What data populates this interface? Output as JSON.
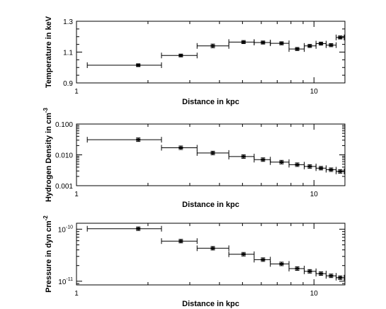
{
  "chart_data": [
    {
      "type": "scatter",
      "xlabel": "Distance in kpc",
      "ylabel": "Temperature in keV",
      "xscale": "log",
      "yscale": "linear",
      "xlim": [
        1,
        13.5
      ],
      "ylim": [
        0.9,
        1.3
      ],
      "xticks": [
        {
          "v": 1,
          "label": "1"
        },
        {
          "v": 10,
          "label": "10"
        }
      ],
      "yticks": [
        {
          "v": 0.9,
          "label": "0.9"
        },
        {
          "v": 1.1,
          "label": "1.1"
        },
        {
          "v": 1.3,
          "label": "1.3"
        }
      ],
      "points": [
        {
          "x": 1.82,
          "xlo": 1.11,
          "xhi": 2.28,
          "y": 1.015,
          "yerr": 0.006
        },
        {
          "x": 2.75,
          "xlo": 2.28,
          "xhi": 3.22,
          "y": 1.078,
          "yerr": 0.006
        },
        {
          "x": 3.75,
          "xlo": 3.22,
          "xhi": 4.38,
          "y": 1.14,
          "yerr": 0.012
        },
        {
          "x": 5.05,
          "xlo": 4.38,
          "xhi": 5.6,
          "y": 1.165,
          "yerr": 0.01
        },
        {
          "x": 6.1,
          "xlo": 5.6,
          "xhi": 6.55,
          "y": 1.162,
          "yerr": 0.01
        },
        {
          "x": 7.3,
          "xlo": 6.55,
          "xhi": 7.85,
          "y": 1.157,
          "yerr": 0.01
        },
        {
          "x": 8.5,
          "xlo": 7.85,
          "xhi": 9.1,
          "y": 1.12,
          "yerr": 0.01
        },
        {
          "x": 9.6,
          "xlo": 9.1,
          "xhi": 10.2,
          "y": 1.14,
          "yerr": 0.01
        },
        {
          "x": 10.7,
          "xlo": 10.2,
          "xhi": 11.25,
          "y": 1.155,
          "yerr": 0.01
        },
        {
          "x": 11.8,
          "xlo": 11.25,
          "xhi": 12.4,
          "y": 1.145,
          "yerr": 0.01
        },
        {
          "x": 12.9,
          "xlo": 12.4,
          "xhi": 13.4,
          "y": 1.195,
          "yerr": 0.01
        }
      ]
    },
    {
      "type": "scatter",
      "xlabel": "Distance in kpc",
      "ylabel": "Hydrogen Density in cm",
      "ylabel_sup": "-3",
      "xscale": "log",
      "yscale": "log",
      "xlim": [
        1,
        13.5
      ],
      "ylim": [
        0.001,
        0.1
      ],
      "xticks": [
        {
          "v": 1,
          "label": "1"
        },
        {
          "v": 10,
          "label": "10"
        }
      ],
      "yticks": [
        {
          "v": 0.001,
          "label": "0.001"
        },
        {
          "v": 0.01,
          "label": "0.010"
        },
        {
          "v": 0.1,
          "label": "0.100"
        }
      ],
      "points": [
        {
          "x": 1.82,
          "xlo": 1.11,
          "xhi": 2.28,
          "y": 0.031
        },
        {
          "x": 2.75,
          "xlo": 2.28,
          "xhi": 3.22,
          "y": 0.017
        },
        {
          "x": 3.75,
          "xlo": 3.22,
          "xhi": 4.38,
          "y": 0.0115
        },
        {
          "x": 5.05,
          "xlo": 4.38,
          "xhi": 5.6,
          "y": 0.0088
        },
        {
          "x": 6.1,
          "xlo": 5.6,
          "xhi": 6.55,
          "y": 0.007
        },
        {
          "x": 7.3,
          "xlo": 6.55,
          "xhi": 7.85,
          "y": 0.0058
        },
        {
          "x": 8.5,
          "xlo": 7.85,
          "xhi": 9.1,
          "y": 0.0048
        },
        {
          "x": 9.6,
          "xlo": 9.1,
          "xhi": 10.2,
          "y": 0.0042
        },
        {
          "x": 10.7,
          "xlo": 10.2,
          "xhi": 11.25,
          "y": 0.0037
        },
        {
          "x": 11.8,
          "xlo": 11.25,
          "xhi": 12.4,
          "y": 0.0033
        },
        {
          "x": 12.9,
          "xlo": 12.4,
          "xhi": 13.4,
          "y": 0.0029
        }
      ]
    },
    {
      "type": "scatter",
      "xlabel": "Distance in kpc",
      "ylabel": "Pressure in dyn cm",
      "ylabel_sup": "-2",
      "xscale": "log",
      "yscale": "log",
      "xlim": [
        1,
        13.5
      ],
      "ylim": [
        8.5e-12,
        1.3e-10
      ],
      "xticks": [
        {
          "v": 1,
          "label": "1"
        },
        {
          "v": 10,
          "label": "10"
        }
      ],
      "yticks": [
        {
          "v": 1e-11,
          "label": "10",
          "sup": "-11"
        },
        {
          "v": 1e-10,
          "label": "10",
          "sup": "-10"
        }
      ],
      "points": [
        {
          "x": 1.82,
          "xlo": 1.11,
          "xhi": 2.28,
          "y": 1.02e-10
        },
        {
          "x": 2.75,
          "xlo": 2.28,
          "xhi": 3.22,
          "y": 5.9e-11
        },
        {
          "x": 3.75,
          "xlo": 3.22,
          "xhi": 4.38,
          "y": 4.3e-11
        },
        {
          "x": 5.05,
          "xlo": 4.38,
          "xhi": 5.6,
          "y": 3.3e-11
        },
        {
          "x": 6.1,
          "xlo": 5.6,
          "xhi": 6.55,
          "y": 2.6e-11
        },
        {
          "x": 7.3,
          "xlo": 6.55,
          "xhi": 7.85,
          "y": 2.15e-11
        },
        {
          "x": 8.5,
          "xlo": 7.85,
          "xhi": 9.1,
          "y": 1.75e-11
        },
        {
          "x": 9.6,
          "xlo": 9.1,
          "xhi": 10.2,
          "y": 1.55e-11
        },
        {
          "x": 10.7,
          "xlo": 10.2,
          "xhi": 11.25,
          "y": 1.4e-11
        },
        {
          "x": 11.8,
          "xlo": 11.25,
          "xhi": 12.4,
          "y": 1.27e-11
        },
        {
          "x": 12.9,
          "xlo": 12.4,
          "xhi": 13.4,
          "y": 1.17e-11
        }
      ]
    }
  ]
}
